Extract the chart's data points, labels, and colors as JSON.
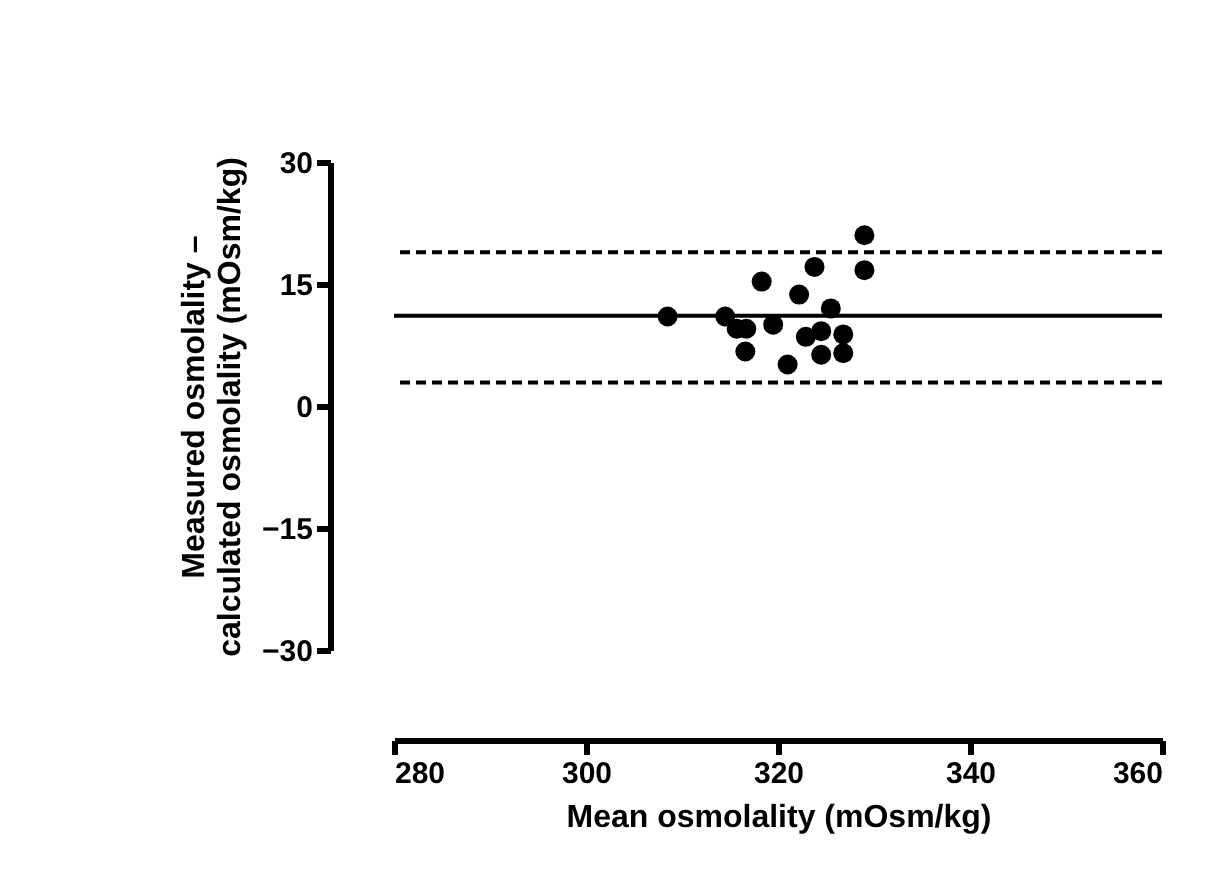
{
  "chart_data": {
    "type": "scatter",
    "xlabel": "Mean osmolality (mOsm/kg)",
    "ylabel": "Measured osmolality –\ncalculated osmolality (mOsm/kg)",
    "x": [
      308.5,
      314.5,
      315.7,
      316.7,
      316.6,
      318.3,
      319.5,
      321.0,
      322.2,
      322.9,
      323.8,
      324.5,
      324.5,
      325.5,
      326.8,
      326.8,
      329.0,
      329.0
    ],
    "series": [
      {
        "color": "#000000",
        "values": [
          11.0,
          11.0,
          9.5,
          9.5,
          6.7,
          15.3,
          10.0,
          5.1,
          13.7,
          8.5,
          17.1,
          9.2,
          6.3,
          12.0,
          8.8,
          6.5,
          21.0,
          16.7
        ]
      }
    ],
    "marker": "circle",
    "xlim": [
      280,
      360
    ],
    "xticks": [
      280,
      300,
      320,
      340,
      360
    ],
    "ylim": [
      -30,
      30
    ],
    "yticks": [
      -30,
      -15,
      0,
      15,
      30
    ],
    "grid": false,
    "ref_lines": [
      {
        "axis": "y",
        "value": 11.1,
        "color": "#000000",
        "line_style": "solid"
      },
      {
        "axis": "y",
        "value": 18.9,
        "color": "#000000",
        "line_style": "dashed"
      },
      {
        "axis": "y",
        "value": 2.9,
        "color": "#000000",
        "line_style": "dashed"
      }
    ]
  }
}
